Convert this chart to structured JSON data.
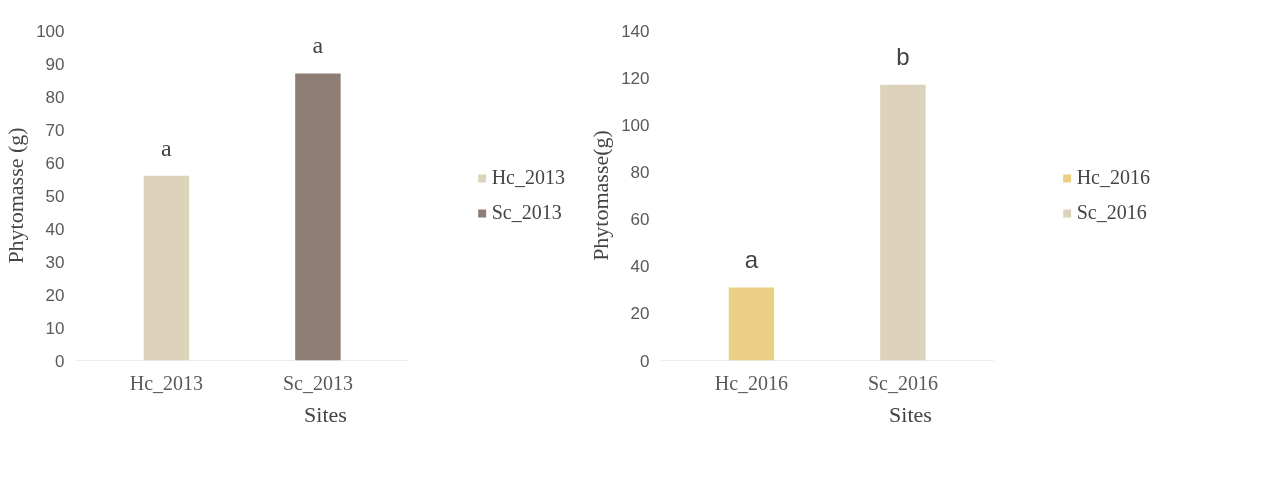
{
  "chart_data": [
    {
      "type": "bar",
      "xlabel": "Sites",
      "ylabel": "Phytomasse (g)",
      "categories": [
        "Hc_2013",
        "Sc_2013"
      ],
      "series": [
        {
          "name": "Hc_2013",
          "color": "#ddd3bb",
          "values": [
            56,
            null
          ]
        },
        {
          "name": "Sc_2013",
          "color": "#8e7d72",
          "values": [
            null,
            87
          ]
        }
      ],
      "ylim": [
        0,
        100
      ],
      "yticks": [
        0,
        10,
        20,
        30,
        40,
        50,
        60,
        70,
        80,
        90,
        100
      ],
      "grid": false,
      "legend": "right",
      "annotations": [
        "a",
        "a"
      ]
    },
    {
      "type": "bar",
      "xlabel": "Sites",
      "ylabel": "Phytomasse(g)",
      "categories": [
        "Hc_2016",
        "Sc_2016"
      ],
      "series": [
        {
          "name": "Hc_2016",
          "color": "#ebcf86",
          "values": [
            31,
            null
          ]
        },
        {
          "name": "Sc_2016",
          "color": "#ddd3bd",
          "values": [
            null,
            117
          ]
        }
      ],
      "ylim": [
        0,
        140
      ],
      "yticks": [
        0,
        20,
        40,
        60,
        80,
        100,
        120,
        140
      ],
      "grid": false,
      "legend": "right",
      "annotations": [
        "a",
        "b"
      ]
    }
  ]
}
